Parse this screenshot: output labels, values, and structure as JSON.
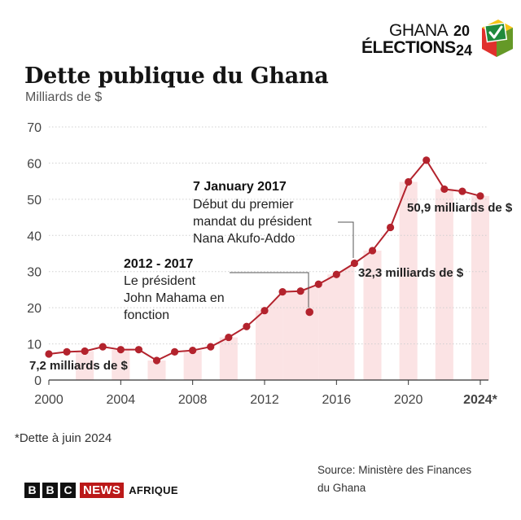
{
  "header": {
    "title": "Dette publique du Ghana",
    "subtitle": "Milliards de $"
  },
  "logo": {
    "line1": "GHANA",
    "year_top": "20",
    "line2": "ÉLECTIONS",
    "year_bottom": "24",
    "colors": {
      "red": "#e0302c",
      "yellow": "#f5c518",
      "green": "#1f8a3c",
      "check": "#ffffff"
    }
  },
  "chart_data": {
    "type": "line",
    "x": [
      2000,
      2001,
      2002,
      2003,
      2004,
      2005,
      2006,
      2007,
      2008,
      2009,
      2010,
      2011,
      2012,
      2013,
      2014,
      2015,
      2016,
      2017,
      2018,
      2019,
      2020,
      2021,
      2022,
      2023,
      2024
    ],
    "values": [
      7.2,
      7.8,
      8.0,
      9.2,
      8.4,
      8.4,
      5.4,
      7.8,
      8.2,
      9.2,
      11.8,
      14.8,
      19.2,
      24.4,
      24.6,
      26.5,
      29.2,
      32.3,
      35.8,
      42.2,
      54.8,
      60.8,
      52.8,
      52.2,
      50.9
    ],
    "extra_point": {
      "x": 2014.5,
      "y": 18.8
    },
    "ylim": [
      0,
      70
    ],
    "yticks": [
      0,
      10,
      20,
      30,
      40,
      50,
      60,
      70
    ],
    "xlim": [
      2000,
      2024
    ],
    "xticks": [
      {
        "value": 2000,
        "label": "2000"
      },
      {
        "value": 2004,
        "label": "2004"
      },
      {
        "value": 2008,
        "label": "2008"
      },
      {
        "value": 2012,
        "label": "2012"
      },
      {
        "value": 2016,
        "label": "2016"
      },
      {
        "value": 2020,
        "label": "2020"
      },
      {
        "value": 2024,
        "label": "2024*"
      }
    ],
    "grid": true,
    "line_color": "#b3232d",
    "band_color": "#fbe3e4",
    "annotations": {
      "start_label": "7,2 milliards de $",
      "mid_label": "32,3 milliards de $",
      "end_label": "50,9 milliards de $",
      "mahama": {
        "heading": "2012 - 2017",
        "lines": [
          "Le président",
          "John Mahama en",
          "fonction"
        ]
      },
      "akufo": {
        "heading": "7 January 2017",
        "lines": [
          "Début du premier",
          "mandat du président",
          "Nana Akufo-Addo"
        ]
      }
    }
  },
  "footer": {
    "footnote": "*Dette à juin 2024",
    "source_line1": "Source: Ministère des Finances",
    "source_line2": "du Ghana",
    "brand_letters": [
      "B",
      "B",
      "C"
    ],
    "brand_news": "NEWS",
    "brand_region": "AFRIQUE"
  }
}
